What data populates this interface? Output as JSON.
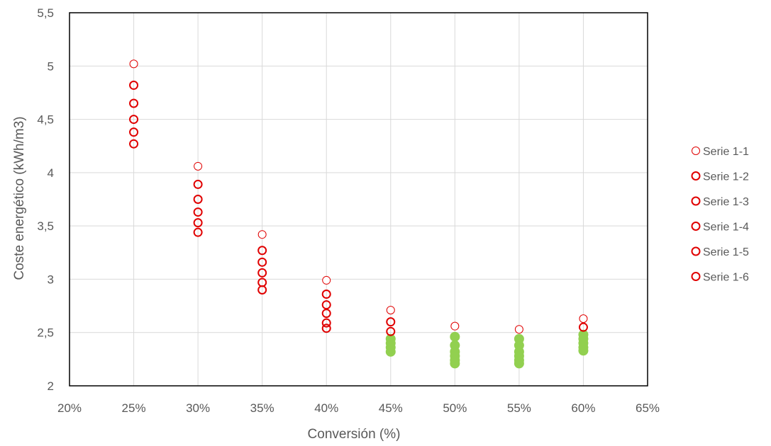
{
  "chart_data": {
    "type": "scatter",
    "title": "",
    "xlabel": "Conversión (%)",
    "ylabel": "Coste energético (kWh/m3)",
    "xlim": [
      0.2,
      0.65
    ],
    "ylim": [
      2,
      5.5
    ],
    "x_ticks": [
      {
        "value": 0.2,
        "label": "20%"
      },
      {
        "value": 0.25,
        "label": "25%"
      },
      {
        "value": 0.3,
        "label": "30%"
      },
      {
        "value": 0.35,
        "label": "35%"
      },
      {
        "value": 0.4,
        "label": "40%"
      },
      {
        "value": 0.45,
        "label": "45%"
      },
      {
        "value": 0.5,
        "label": "50%"
      },
      {
        "value": 0.55,
        "label": "55%"
      },
      {
        "value": 0.6,
        "label": "60%"
      },
      {
        "value": 0.65,
        "label": "65%"
      }
    ],
    "y_ticks": [
      {
        "value": 2.0,
        "label": "2"
      },
      {
        "value": 2.5,
        "label": "2,5"
      },
      {
        "value": 3.0,
        "label": "3"
      },
      {
        "value": 3.5,
        "label": "3,5"
      },
      {
        "value": 4.0,
        "label": "4"
      },
      {
        "value": 4.5,
        "label": "4,5"
      },
      {
        "value": 5.0,
        "label": "5"
      },
      {
        "value": 5.5,
        "label": "5,5"
      }
    ],
    "grid": true,
    "legend_position": "right",
    "colors": {
      "red": "#e00000",
      "green": "#92d050",
      "grid": "#d9d9d9",
      "frame": "#000000"
    },
    "series": [
      {
        "name": "Serie 1-1",
        "marker": "small-hollow-circle",
        "color": "#e00000",
        "in_legend": true,
        "x": [
          0.25,
          0.3,
          0.35,
          0.4,
          0.45,
          0.5,
          0.55,
          0.6
        ],
        "y": [
          5.02,
          4.06,
          3.42,
          2.99,
          2.71,
          2.56,
          2.53,
          2.63
        ]
      },
      {
        "name": "Serie 1-2",
        "marker": "hollow-circle",
        "color": "#e00000",
        "in_legend": true,
        "x": [
          0.25,
          0.3,
          0.35,
          0.4,
          0.45,
          0.6
        ],
        "y": [
          4.82,
          3.89,
          3.27,
          2.86,
          2.6,
          2.55
        ]
      },
      {
        "name": "Serie 1-3",
        "marker": "hollow-circle",
        "color": "#e00000",
        "in_legend": true,
        "x": [
          0.25,
          0.3,
          0.35,
          0.4,
          0.45
        ],
        "y": [
          4.65,
          3.75,
          3.16,
          2.76,
          2.51
        ]
      },
      {
        "name": "Serie 1-4",
        "marker": "hollow-circle",
        "color": "#e00000",
        "in_legend": true,
        "x": [
          0.25,
          0.3,
          0.35,
          0.4
        ],
        "y": [
          4.5,
          3.63,
          3.06,
          2.68
        ]
      },
      {
        "name": "Serie 1-5",
        "marker": "hollow-circle",
        "color": "#e00000",
        "in_legend": true,
        "x": [
          0.25,
          0.3,
          0.35,
          0.4
        ],
        "y": [
          4.38,
          3.53,
          2.97,
          2.59
        ]
      },
      {
        "name": "Serie 1-6",
        "marker": "hollow-circle",
        "color": "#e00000",
        "in_legend": true,
        "x": [
          0.25,
          0.3,
          0.35,
          0.4
        ],
        "y": [
          4.27,
          3.44,
          2.9,
          2.54
        ]
      },
      {
        "name": "",
        "marker": "filled-circle",
        "color": "#92d050",
        "in_legend": false,
        "x": [
          0.45,
          0.45,
          0.45,
          0.45,
          0.5,
          0.5,
          0.5,
          0.5,
          0.5,
          0.5,
          0.55,
          0.55,
          0.55,
          0.55,
          0.55,
          0.55,
          0.6,
          0.6,
          0.6,
          0.6,
          0.6
        ],
        "y": [
          2.44,
          2.4,
          2.36,
          2.32,
          2.46,
          2.38,
          2.32,
          2.28,
          2.24,
          2.21,
          2.44,
          2.38,
          2.32,
          2.28,
          2.24,
          2.21,
          2.48,
          2.44,
          2.4,
          2.36,
          2.33
        ]
      }
    ]
  }
}
